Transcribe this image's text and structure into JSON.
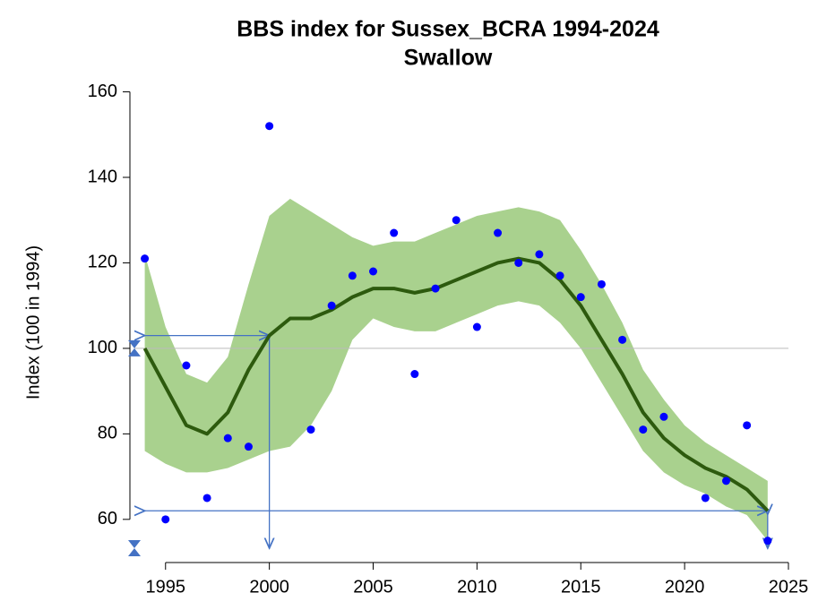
{
  "chart_data": {
    "type": "line",
    "title": "BBS index for Sussex_BCRA 1994-2024",
    "subtitle": "Swallow",
    "ylabel": "Index (100 in 1994)",
    "x": [
      1994,
      1995,
      1996,
      1997,
      1998,
      1999,
      2000,
      2001,
      2002,
      2003,
      2004,
      2005,
      2006,
      2007,
      2008,
      2009,
      2010,
      2011,
      2012,
      2013,
      2014,
      2015,
      2016,
      2017,
      2018,
      2019,
      2020,
      2021,
      2022,
      2023,
      2024
    ],
    "trend": {
      "color": "#2d5a0e",
      "values": [
        100,
        91,
        82,
        80,
        85,
        95,
        103,
        107,
        107,
        109,
        112,
        114,
        114,
        113,
        114,
        116,
        118,
        120,
        121,
        120,
        116,
        110,
        102,
        94,
        85,
        79,
        75,
        72,
        70,
        67,
        62
      ]
    },
    "band": {
      "color": "#a9d18e",
      "upper": [
        122,
        105,
        94,
        92,
        98,
        115,
        131,
        135,
        132,
        129,
        126,
        124,
        125,
        125,
        127,
        129,
        131,
        132,
        133,
        132,
        130,
        123,
        115,
        106,
        95,
        88,
        82,
        78,
        75,
        72,
        69
      ],
      "lower": [
        76,
        73,
        71,
        71,
        72,
        74,
        76,
        77,
        82,
        90,
        102,
        107,
        105,
        104,
        104,
        106,
        108,
        110,
        111,
        110,
        106,
        100,
        92,
        84,
        76,
        71,
        68,
        66,
        63,
        61,
        55
      ]
    },
    "points": {
      "color": "#0000ff",
      "x": [
        1994,
        1995,
        1996,
        1997,
        1998,
        1999,
        2000,
        2002,
        2003,
        2004,
        2005,
        2006,
        2007,
        2008,
        2009,
        2010,
        2011,
        2012,
        2013,
        2014,
        2015,
        2016,
        2017,
        2018,
        2019,
        2021,
        2022,
        2023,
        2024
      ],
      "values": [
        121,
        60,
        96,
        65,
        79,
        77,
        152,
        81,
        110,
        117,
        118,
        127,
        94,
        114,
        130,
        105,
        127,
        120,
        122,
        117,
        112,
        115,
        102,
        81,
        84,
        65,
        69,
        82,
        55
      ]
    },
    "reference_line": 100,
    "xlim": [
      1993.5,
      2025
    ],
    "ylim": [
      52,
      162
    ],
    "xticks": [
      1995,
      2000,
      2005,
      2010,
      2015,
      2020,
      2025
    ],
    "yticks": [
      60,
      80,
      100,
      120,
      140,
      160
    ]
  }
}
